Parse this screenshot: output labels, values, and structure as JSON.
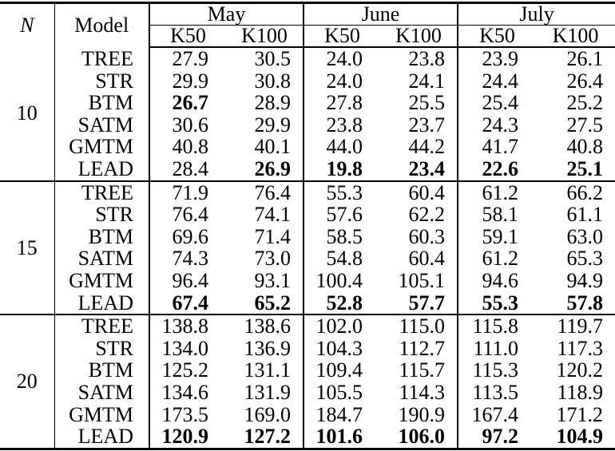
{
  "table": {
    "col_n_label": "N",
    "col_model_label": "Model",
    "months": [
      "May",
      "June",
      "July"
    ],
    "subcols": [
      "K50",
      "K100"
    ],
    "blocks": [
      {
        "n": "10",
        "rows": [
          {
            "model": "TREE",
            "values": [
              "27.9",
              "30.5",
              "24.0",
              "23.8",
              "23.9",
              "26.1"
            ],
            "bold": [
              0,
              0,
              0,
              0,
              0,
              0
            ]
          },
          {
            "model": "STR",
            "values": [
              "29.9",
              "30.8",
              "24.0",
              "24.1",
              "24.4",
              "26.4"
            ],
            "bold": [
              0,
              0,
              0,
              0,
              0,
              0
            ]
          },
          {
            "model": "BTM",
            "values": [
              "26.7",
              "28.9",
              "27.8",
              "25.5",
              "25.4",
              "25.2"
            ],
            "bold": [
              1,
              0,
              0,
              0,
              0,
              0
            ]
          },
          {
            "model": "SATM",
            "values": [
              "30.6",
              "29.9",
              "23.8",
              "23.7",
              "24.3",
              "27.5"
            ],
            "bold": [
              0,
              0,
              0,
              0,
              0,
              0
            ]
          },
          {
            "model": "GMTM",
            "values": [
              "40.8",
              "40.1",
              "44.0",
              "44.2",
              "41.7",
              "40.8"
            ],
            "bold": [
              0,
              0,
              0,
              0,
              0,
              0
            ]
          },
          {
            "model": "LEAD",
            "values": [
              "28.4",
              "26.9",
              "19.8",
              "23.4",
              "22.6",
              "25.1"
            ],
            "bold": [
              0,
              1,
              1,
              1,
              1,
              1
            ]
          }
        ]
      },
      {
        "n": "15",
        "rows": [
          {
            "model": "TREE",
            "values": [
              "71.9",
              "76.4",
              "55.3",
              "60.4",
              "61.2",
              "66.2"
            ],
            "bold": [
              0,
              0,
              0,
              0,
              0,
              0
            ]
          },
          {
            "model": "STR",
            "values": [
              "76.4",
              "74.1",
              "57.6",
              "62.2",
              "58.1",
              "61.1"
            ],
            "bold": [
              0,
              0,
              0,
              0,
              0,
              0
            ]
          },
          {
            "model": "BTM",
            "values": [
              "69.6",
              "71.4",
              "58.5",
              "60.3",
              "59.1",
              "63.0"
            ],
            "bold": [
              0,
              0,
              0,
              0,
              0,
              0
            ]
          },
          {
            "model": "SATM",
            "values": [
              "74.3",
              "73.0",
              "54.8",
              "60.4",
              "61.2",
              "65.3"
            ],
            "bold": [
              0,
              0,
              0,
              0,
              0,
              0
            ]
          },
          {
            "model": "GMTM",
            "values": [
              "96.4",
              "93.1",
              "100.4",
              "105.1",
              "94.6",
              "94.9"
            ],
            "bold": [
              0,
              0,
              0,
              0,
              0,
              0
            ]
          },
          {
            "model": "LEAD",
            "values": [
              "67.4",
              "65.2",
              "52.8",
              "57.7",
              "55.3",
              "57.8"
            ],
            "bold": [
              1,
              1,
              1,
              1,
              1,
              1
            ]
          }
        ]
      },
      {
        "n": "20",
        "rows": [
          {
            "model": "TREE",
            "values": [
              "138.8",
              "138.6",
              "102.0",
              "115.0",
              "115.8",
              "119.7"
            ],
            "bold": [
              0,
              0,
              0,
              0,
              0,
              0
            ]
          },
          {
            "model": "STR",
            "values": [
              "134.0",
              "136.9",
              "104.3",
              "112.7",
              "111.0",
              "117.3"
            ],
            "bold": [
              0,
              0,
              0,
              0,
              0,
              0
            ]
          },
          {
            "model": "BTM",
            "values": [
              "125.2",
              "131.1",
              "109.4",
              "115.7",
              "115.3",
              "120.2"
            ],
            "bold": [
              0,
              0,
              0,
              0,
              0,
              0
            ]
          },
          {
            "model": "SATM",
            "values": [
              "134.6",
              "131.9",
              "105.5",
              "114.3",
              "113.5",
              "118.9"
            ],
            "bold": [
              0,
              0,
              0,
              0,
              0,
              0
            ]
          },
          {
            "model": "GMTM",
            "values": [
              "173.5",
              "169.0",
              "184.7",
              "190.9",
              "167.4",
              "171.2"
            ],
            "bold": [
              0,
              0,
              0,
              0,
              0,
              0
            ]
          },
          {
            "model": "LEAD",
            "values": [
              "120.9",
              "127.2",
              "101.6",
              "106.0",
              "97.2",
              "104.9"
            ],
            "bold": [
              1,
              1,
              1,
              1,
              1,
              1
            ]
          }
        ]
      }
    ]
  }
}
